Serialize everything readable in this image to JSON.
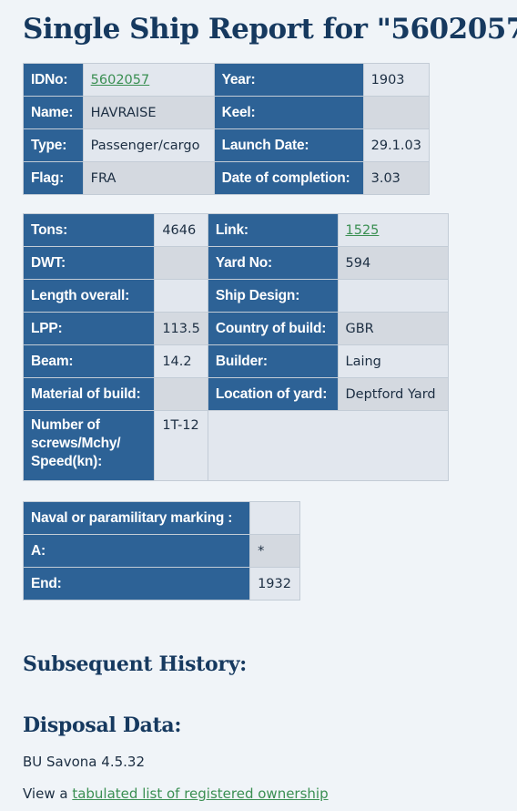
{
  "page": {
    "title": "Single Ship Report for \"5602057\""
  },
  "table1": {
    "idno_label": "IDNo:",
    "idno_value": "5602057",
    "year_label": "Year:",
    "year_value": "1903",
    "name_label": "Name:",
    "name_value": "HAVRAISE",
    "keel_label": "Keel:",
    "keel_value": "",
    "type_label": "Type:",
    "type_value": "Passenger/cargo",
    "launch_label": "Launch Date:",
    "launch_value": "29.1.03",
    "flag_label": "Flag:",
    "flag_value": "FRA",
    "completion_label": "Date of completion:",
    "completion_value": "3.03"
  },
  "table2": {
    "tons_label": "Tons:",
    "tons_value": "4646",
    "link_label": "Link:",
    "link_value": "1525",
    "dwt_label": "DWT:",
    "dwt_value": "",
    "yard_no_label": "Yard No:",
    "yard_no_value": "594",
    "length_label": "Length overall:",
    "length_value": "",
    "design_label": "Ship Design:",
    "design_value": "",
    "lpp_label": "LPP:",
    "lpp_value": "113.5",
    "country_label": "Country of build:",
    "country_value": "GBR",
    "beam_label": "Beam:",
    "beam_value": "14.2",
    "builder_label": "Builder:",
    "builder_value": "Laing",
    "material_label": "Material of build:",
    "material_value": "",
    "location_label": "Location of yard:",
    "location_value": "Deptford Yard",
    "screws_label": "Number of screws/Mchy/ Speed(kn):",
    "screws_value": "1T-12"
  },
  "table3": {
    "naval_label": "Naval or paramilitary marking :",
    "naval_value": "",
    "a_label": "A:",
    "a_value": "*",
    "end_label": "End:",
    "end_value": "1932"
  },
  "history": {
    "heading": "Subsequent History:"
  },
  "disposal": {
    "heading": "Disposal Data:",
    "text": "BU Savona 4.5.32",
    "view_prefix": "View a ",
    "ownership_link": "tabulated list of registered ownership"
  }
}
